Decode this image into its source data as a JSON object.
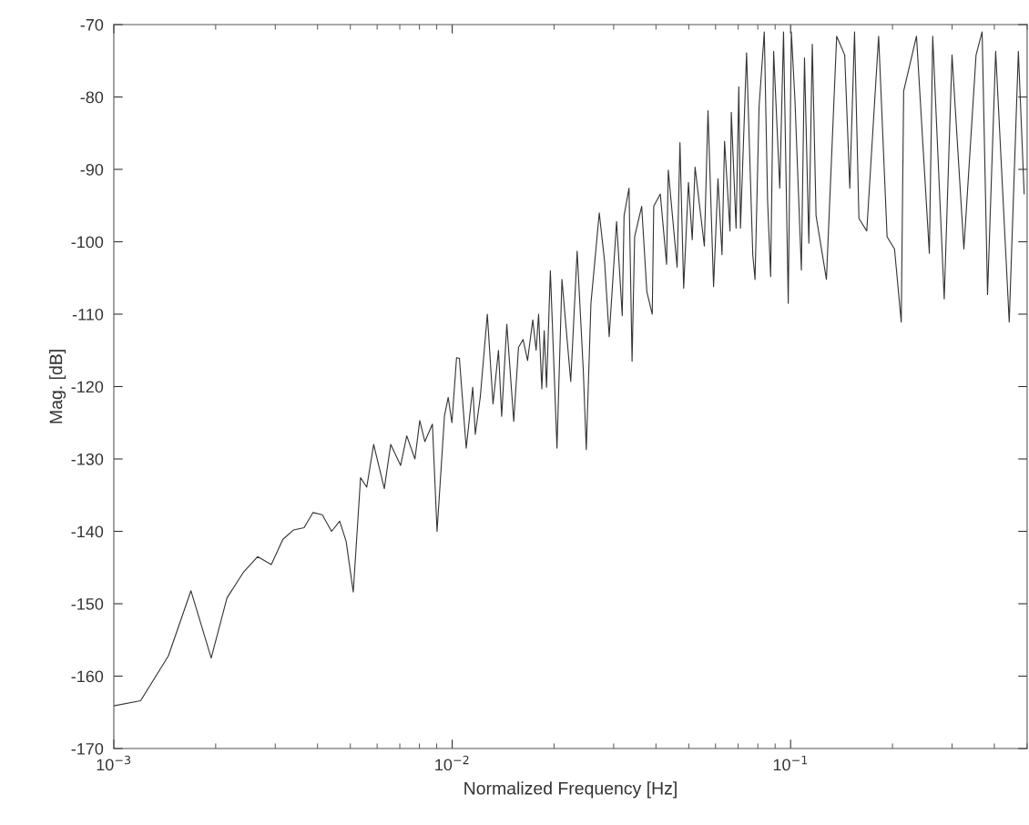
{
  "chart_data": {
    "type": "line",
    "xlabel": "Normalized Frequency [Hz]",
    "ylabel": "Mag. [dB]",
    "log": "x",
    "grid": false,
    "marker": "none",
    "line_style": "solid",
    "xlim": [
      0.001,
      0.5
    ],
    "xticks": [
      {
        "value": 0.001,
        "label": "10$^{−3}$"
      },
      {
        "value": 0.01,
        "label": "10$^{−2}$"
      },
      {
        "value": 0.1,
        "label": "10$^{−1}$"
      }
    ],
    "ylim": [
      -170,
      -70
    ],
    "yticks": [
      -170,
      -160,
      -150,
      -140,
      -130,
      -120,
      -110,
      -100,
      -90,
      -80,
      -70
    ],
    "series": [
      {
        "color": "#333333",
        "x": [
          0.001,
          0.0012,
          0.00145,
          0.00169,
          0.00194,
          0.00216,
          0.00242,
          0.00266,
          0.00292,
          0.00316,
          0.0034,
          0.00365,
          0.00388,
          0.00413,
          0.0044,
          0.00465,
          0.00486,
          0.0051,
          0.00536,
          0.00559,
          0.00586,
          0.0063,
          0.00658,
          0.00704,
          0.00734,
          0.00776,
          0.00802,
          0.0083,
          0.00874,
          0.00902,
          0.00949,
          0.00973,
          0.00998,
          0.0103,
          0.0105,
          0.011,
          0.0115,
          0.0117,
          0.0121,
          0.0127,
          0.0132,
          0.0137,
          0.014,
          0.0145,
          0.0152,
          0.0157,
          0.0162,
          0.0167,
          0.0173,
          0.0177,
          0.018,
          0.0184,
          0.0187,
          0.019,
          0.0195,
          0.0204,
          0.0211,
          0.0224,
          0.0234,
          0.0244,
          0.0249,
          0.0257,
          0.0272,
          0.0282,
          0.0291,
          0.0306,
          0.0318,
          0.0322,
          0.0333,
          0.034,
          0.0346,
          0.0363,
          0.0376,
          0.039,
          0.0394,
          0.0412,
          0.043,
          0.0435,
          0.0462,
          0.0471,
          0.0483,
          0.0499,
          0.0512,
          0.0522,
          0.0556,
          0.057,
          0.0592,
          0.061,
          0.0627,
          0.0638,
          0.0662,
          0.0668,
          0.069,
          0.0703,
          0.0711,
          0.0741,
          0.0773,
          0.0785,
          0.0807,
          0.0836,
          0.0855,
          0.0873,
          0.0891,
          0.0929,
          0.0953,
          0.0984,
          0.1005,
          0.103,
          0.1076,
          0.1099,
          0.1132,
          0.1159,
          0.1189,
          0.1276,
          0.1368,
          0.1445,
          0.1496,
          0.1545,
          0.1592,
          0.1679,
          0.182,
          0.1928,
          0.2028,
          0.2123,
          0.2158,
          0.2355,
          0.257,
          0.263,
          0.2844,
          0.2999,
          0.3251,
          0.3532,
          0.3681,
          0.3819,
          0.4036,
          0.4426,
          0.471,
          0.49
        ],
        "values": [
          -164.1,
          -163.4,
          -157.2,
          -148.2,
          -157.5,
          -149.2,
          -145.6,
          -143.5,
          -144.6,
          -141.1,
          -139.8,
          -139.5,
          -137.4,
          -137.7,
          -140.0,
          -138.6,
          -141.4,
          -148.4,
          -132.6,
          -133.9,
          -128.0,
          -134.1,
          -128.0,
          -130.9,
          -126.8,
          -130.0,
          -124.7,
          -127.6,
          -125.2,
          -140.0,
          -124.0,
          -121.5,
          -125.0,
          -116.0,
          -116.1,
          -128.5,
          -120.1,
          -126.6,
          -121.5,
          -110.0,
          -122.4,
          -115.0,
          -124.1,
          -111.4,
          -124.8,
          -114.6,
          -113.5,
          -116.4,
          -110.8,
          -115.0,
          -110.0,
          -120.3,
          -112.3,
          -120.1,
          -104.0,
          -128.5,
          -105.2,
          -119.3,
          -101.3,
          -117.8,
          -128.7,
          -108.5,
          -96.0,
          -102.7,
          -113.1,
          -97.2,
          -110.2,
          -96.4,
          -92.6,
          -116.5,
          -99.3,
          -95.1,
          -106.9,
          -110.0,
          -95.1,
          -93.4,
          -103.1,
          -90.1,
          -103.5,
          -86.3,
          -106.4,
          -91.8,
          -99.7,
          -89.7,
          -100.6,
          -81.9,
          -106.2,
          -91.3,
          -101.8,
          -86.1,
          -98.5,
          -82.1,
          -98.1,
          -78.6,
          -98.1,
          -73.9,
          -101.8,
          -105.2,
          -81.3,
          -71.0,
          -94.3,
          -104.8,
          -73.7,
          -92.6,
          -71.0,
          -108.5,
          -71.0,
          -80.4,
          -103.9,
          -74.6,
          -100.2,
          -72.7,
          -96.4,
          -105.2,
          -71.6,
          -74.2,
          -92.6,
          -71.0,
          -96.8,
          -98.5,
          -71.6,
          -99.3,
          -101.0,
          -111.1,
          -79.2,
          -71.6,
          -101.6,
          -71.6,
          -107.9,
          -74.2,
          -101.0,
          -74.2,
          -71.0,
          -107.3,
          -73.7,
          -111.1,
          -73.7,
          -93.4
        ]
      }
    ]
  }
}
